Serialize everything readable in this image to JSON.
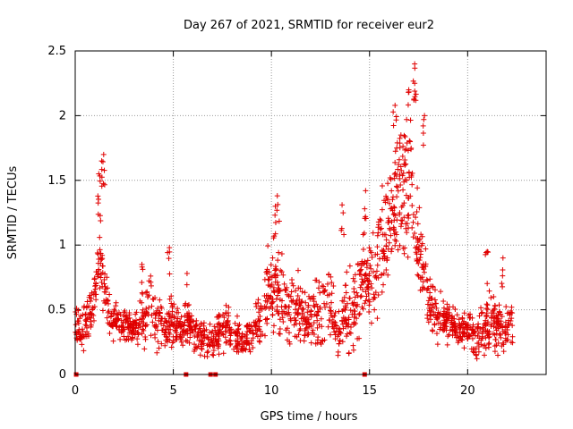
{
  "chart_data": {
    "type": "scatter",
    "title": "Day 267 of 2021, SRMTID for receiver eur2",
    "xlabel": "GPS time / hours",
    "ylabel": "SRMTID / TECUs",
    "xlim": [
      0,
      24
    ],
    "ylim": [
      0,
      2.5
    ],
    "x_ticks": [
      0,
      5,
      10,
      15,
      20
    ],
    "x_tick_labels": [
      "0",
      "5",
      "10",
      "15",
      "20"
    ],
    "y_ticks": [
      0,
      0.5,
      1,
      1.5,
      2,
      2.5
    ],
    "y_tick_labels": [
      "0",
      "0.5",
      "1",
      "1.5",
      "2",
      "2.5"
    ],
    "grid": true,
    "marker": "plus",
    "series_color": "#e00000",
    "series": [
      {
        "name": "SRMTID",
        "envelope": {
          "x": [
            0,
            0.3,
            0.6,
            0.9,
            1.1,
            1.3,
            1.5,
            1.8,
            2.2,
            2.6,
            3.0,
            3.4,
            3.8,
            4.2,
            4.6,
            5.0,
            5.4,
            5.8,
            6.2,
            6.6,
            7.0,
            7.4,
            7.8,
            8.2,
            8.6,
            9.0,
            9.4,
            9.8,
            10.2,
            10.6,
            11.0,
            11.4,
            11.8,
            12.2,
            12.6,
            13.0,
            13.4,
            13.8,
            14.2,
            14.6,
            15.0,
            15.4,
            15.8,
            16.2,
            16.5,
            16.8,
            17.1,
            17.4,
            17.7,
            18.0,
            18.4,
            18.8,
            19.2,
            19.6,
            20.0,
            20.4,
            20.8,
            21.2,
            21.6,
            22.0,
            22.3
          ],
          "center": [
            0.35,
            0.35,
            0.38,
            0.5,
            0.75,
            0.95,
            0.6,
            0.45,
            0.42,
            0.38,
            0.35,
            0.4,
            0.5,
            0.42,
            0.35,
            0.45,
            0.35,
            0.4,
            0.3,
            0.25,
            0.25,
            0.38,
            0.35,
            0.3,
            0.28,
            0.3,
            0.45,
            0.65,
            0.7,
            0.55,
            0.5,
            0.55,
            0.4,
            0.45,
            0.5,
            0.55,
            0.3,
            0.5,
            0.5,
            0.7,
            0.75,
            0.85,
            1.0,
            1.2,
            1.35,
            1.45,
            1.4,
            1.15,
            0.9,
            0.55,
            0.45,
            0.45,
            0.4,
            0.35,
            0.35,
            0.3,
            0.35,
            0.4,
            0.35,
            0.35,
            0.4
          ],
          "spread": [
            0.15,
            0.15,
            0.15,
            0.25,
            0.35,
            0.35,
            0.25,
            0.15,
            0.15,
            0.12,
            0.12,
            0.2,
            0.25,
            0.2,
            0.15,
            0.25,
            0.12,
            0.15,
            0.15,
            0.12,
            0.12,
            0.18,
            0.15,
            0.15,
            0.12,
            0.12,
            0.2,
            0.3,
            0.35,
            0.3,
            0.25,
            0.25,
            0.2,
            0.25,
            0.3,
            0.35,
            0.2,
            0.3,
            0.3,
            0.35,
            0.35,
            0.4,
            0.45,
            0.5,
            0.55,
            0.55,
            0.5,
            0.4,
            0.35,
            0.25,
            0.2,
            0.2,
            0.15,
            0.15,
            0.15,
            0.15,
            0.2,
            0.25,
            0.2,
            0.15,
            0.15
          ]
        },
        "points_per_hour": 80,
        "peaks": [
          {
            "x": 1.45,
            "y": 1.7
          },
          {
            "x": 1.35,
            "y": 1.65
          },
          {
            "x": 1.2,
            "y": 1.55
          },
          {
            "x": 3.4,
            "y": 0.85
          },
          {
            "x": 4.8,
            "y": 0.98
          },
          {
            "x": 5.7,
            "y": 0.78
          },
          {
            "x": 10.3,
            "y": 1.38
          },
          {
            "x": 10.2,
            "y": 1.3
          },
          {
            "x": 13.6,
            "y": 1.31
          },
          {
            "x": 14.8,
            "y": 1.42
          },
          {
            "x": 16.3,
            "y": 2.08
          },
          {
            "x": 16.6,
            "y": 1.85
          },
          {
            "x": 17.0,
            "y": 2.2
          },
          {
            "x": 17.3,
            "y": 2.4
          },
          {
            "x": 17.3,
            "y": 2.25
          },
          {
            "x": 17.8,
            "y": 2.0
          },
          {
            "x": 21.0,
            "y": 0.95
          },
          {
            "x": 21.8,
            "y": 0.9
          }
        ],
        "zeros": [
          0.05,
          5.65,
          6.9,
          7.15,
          14.75
        ]
      }
    ]
  }
}
